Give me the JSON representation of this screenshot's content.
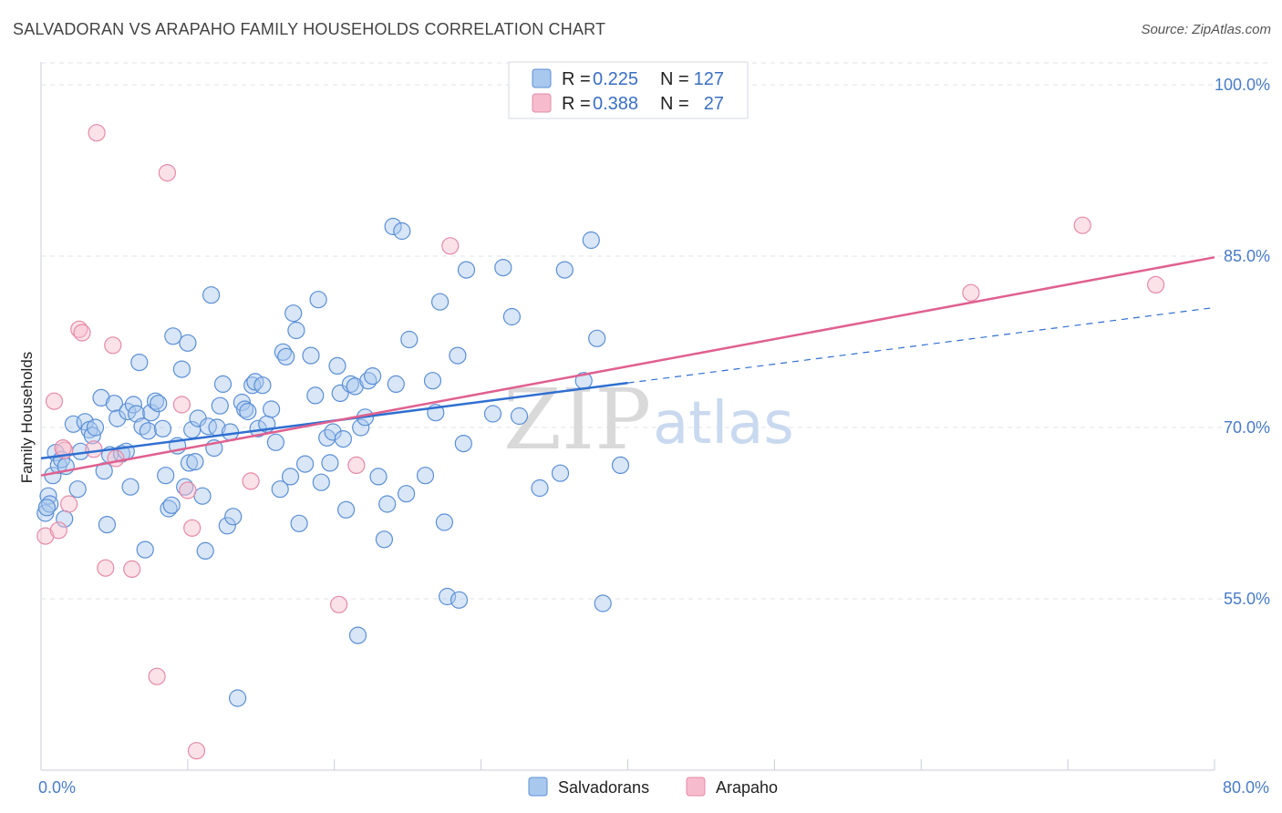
{
  "title": "SALVADORAN VS ARAPAHO FAMILY HOUSEHOLDS CORRELATION CHART",
  "source": "Source: ZipAtlas.com",
  "watermark": {
    "zip": "ZIP",
    "atlas": "atlas"
  },
  "legend": {
    "rows": [
      {
        "r_label": "R =",
        "r_value": "0.225",
        "n_label": "N =",
        "n_value": "127"
      },
      {
        "r_label": "R =",
        "r_value": "0.388",
        "n_label": "N =",
        "n_value": "27"
      }
    ]
  },
  "bottom_legend": [
    "Salvadorans",
    "Arapaho"
  ],
  "colors": {
    "blue_fill": "#a9c8ee",
    "blue_stroke": "#5b8fd6",
    "blue_line": "#2f6fd0",
    "pink_fill": "#f6bccd",
    "pink_stroke": "#e58aa8",
    "pink_line": "#e0608f",
    "grid": "#dde3ea",
    "tick_text": "#4a7cc7"
  },
  "chart_data": {
    "type": "scatter",
    "title": "SALVADORAN VS ARAPAHO FAMILY HOUSEHOLDS CORRELATION CHART",
    "xlabel": "",
    "ylabel": "Family Households",
    "xlim": [
      0,
      80
    ],
    "ylim": [
      40,
      102
    ],
    "x_tick_labels": [
      "0.0%",
      "80.0%"
    ],
    "y_ticks": [
      55,
      70,
      85,
      100
    ],
    "y_tick_labels": [
      "55.0%",
      "70.0%",
      "85.0%",
      "100.0%"
    ],
    "series": [
      {
        "name": "Salvadorans",
        "r": 0.225,
        "n": 127,
        "trend": {
          "x0": 0,
          "y0": 67.3,
          "x1": 40,
          "y1": 73.9,
          "dash_x1": 80,
          "dash_y1": 80.5
        },
        "points": [
          [
            0.3,
            62.5
          ],
          [
            0.5,
            64.0
          ],
          [
            0.6,
            63.3
          ],
          [
            0.8,
            65.8
          ],
          [
            1.0,
            67.8
          ],
          [
            1.2,
            66.7
          ],
          [
            1.4,
            67.2
          ],
          [
            1.6,
            62.0
          ],
          [
            1.7,
            66.6
          ],
          [
            2.2,
            70.3
          ],
          [
            2.5,
            64.6
          ],
          [
            2.7,
            67.9
          ],
          [
            3.0,
            70.5
          ],
          [
            3.3,
            69.8
          ],
          [
            3.5,
            69.3
          ],
          [
            3.7,
            70.0
          ],
          [
            4.1,
            72.6
          ],
          [
            4.3,
            66.2
          ],
          [
            4.5,
            61.5
          ],
          [
            4.7,
            67.6
          ],
          [
            5.0,
            72.1
          ],
          [
            5.2,
            70.8
          ],
          [
            5.5,
            67.7
          ],
          [
            5.8,
            67.9
          ],
          [
            5.9,
            71.4
          ],
          [
            6.1,
            64.8
          ],
          [
            6.3,
            72.0
          ],
          [
            6.5,
            71.2
          ],
          [
            6.7,
            75.7
          ],
          [
            6.9,
            70.1
          ],
          [
            7.1,
            59.3
          ],
          [
            7.3,
            69.7
          ],
          [
            7.5,
            71.3
          ],
          [
            7.8,
            72.3
          ],
          [
            8.0,
            72.1
          ],
          [
            8.3,
            69.9
          ],
          [
            8.5,
            65.8
          ],
          [
            8.7,
            62.9
          ],
          [
            8.9,
            63.2
          ],
          [
            9.0,
            78.0
          ],
          [
            9.3,
            68.4
          ],
          [
            9.6,
            75.1
          ],
          [
            9.8,
            64.8
          ],
          [
            10.0,
            77.4
          ],
          [
            10.1,
            66.9
          ],
          [
            10.3,
            69.8
          ],
          [
            10.5,
            67.0
          ],
          [
            10.7,
            70.8
          ],
          [
            11.0,
            64.0
          ],
          [
            11.2,
            59.2
          ],
          [
            11.4,
            70.1
          ],
          [
            11.6,
            81.6
          ],
          [
            11.8,
            68.2
          ],
          [
            12.0,
            70.0
          ],
          [
            12.2,
            71.9
          ],
          [
            12.4,
            73.8
          ],
          [
            12.7,
            61.4
          ],
          [
            12.9,
            69.6
          ],
          [
            13.1,
            62.2
          ],
          [
            13.4,
            46.3
          ],
          [
            13.7,
            72.2
          ],
          [
            13.9,
            71.6
          ],
          [
            14.1,
            71.4
          ],
          [
            14.4,
            73.7
          ],
          [
            14.6,
            74.0
          ],
          [
            14.8,
            69.9
          ],
          [
            15.1,
            73.7
          ],
          [
            15.4,
            70.3
          ],
          [
            15.7,
            71.6
          ],
          [
            16.0,
            68.7
          ],
          [
            16.3,
            64.6
          ],
          [
            16.5,
            76.6
          ],
          [
            16.7,
            76.2
          ],
          [
            17.0,
            65.7
          ],
          [
            17.2,
            80.0
          ],
          [
            17.4,
            78.5
          ],
          [
            17.6,
            61.6
          ],
          [
            18.0,
            66.8
          ],
          [
            18.4,
            76.3
          ],
          [
            18.7,
            72.8
          ],
          [
            18.9,
            81.2
          ],
          [
            19.1,
            65.2
          ],
          [
            19.5,
            69.1
          ],
          [
            19.7,
            66.9
          ],
          [
            19.9,
            69.6
          ],
          [
            20.2,
            75.4
          ],
          [
            20.4,
            73.0
          ],
          [
            20.6,
            69.0
          ],
          [
            20.8,
            62.8
          ],
          [
            21.1,
            73.8
          ],
          [
            21.4,
            73.6
          ],
          [
            21.6,
            51.8
          ],
          [
            21.8,
            70.0
          ],
          [
            22.1,
            70.9
          ],
          [
            22.3,
            74.1
          ],
          [
            22.6,
            74.5
          ],
          [
            23.0,
            65.7
          ],
          [
            23.4,
            60.2
          ],
          [
            23.6,
            63.3
          ],
          [
            24.0,
            87.6
          ],
          [
            24.2,
            73.8
          ],
          [
            24.6,
            87.2
          ],
          [
            24.9,
            64.2
          ],
          [
            25.1,
            77.7
          ],
          [
            26.2,
            65.8
          ],
          [
            26.7,
            74.1
          ],
          [
            26.9,
            71.3
          ],
          [
            27.2,
            81.0
          ],
          [
            27.5,
            61.7
          ],
          [
            27.7,
            55.2
          ],
          [
            28.4,
            76.3
          ],
          [
            28.5,
            54.9
          ],
          [
            28.8,
            68.6
          ],
          [
            29.0,
            83.8
          ],
          [
            30.8,
            71.2
          ],
          [
            31.5,
            84.0
          ],
          [
            32.1,
            79.7
          ],
          [
            32.6,
            71.0
          ],
          [
            34.0,
            64.7
          ],
          [
            35.4,
            66.0
          ],
          [
            35.7,
            83.8
          ],
          [
            37.0,
            74.1
          ],
          [
            37.5,
            86.4
          ],
          [
            37.9,
            77.8
          ],
          [
            38.3,
            54.6
          ],
          [
            39.5,
            66.7
          ],
          [
            0.4,
            63.0
          ]
        ]
      },
      {
        "name": "Arapaho",
        "r": 0.388,
        "n": 27,
        "trend": {
          "x0": 0,
          "y0": 65.8,
          "x1": 80,
          "y1": 84.9
        },
        "points": [
          [
            0.3,
            60.5
          ],
          [
            0.9,
            72.3
          ],
          [
            1.2,
            61.0
          ],
          [
            1.6,
            68.0
          ],
          [
            1.9,
            63.3
          ],
          [
            2.6,
            78.6
          ],
          [
            2.8,
            78.3
          ],
          [
            3.6,
            68.1
          ],
          [
            3.8,
            95.8
          ],
          [
            4.4,
            57.7
          ],
          [
            4.9,
            77.2
          ],
          [
            5.1,
            67.3
          ],
          [
            6.2,
            57.6
          ],
          [
            7.9,
            48.2
          ],
          [
            8.6,
            92.3
          ],
          [
            9.6,
            72.0
          ],
          [
            10.0,
            64.5
          ],
          [
            10.3,
            61.2
          ],
          [
            10.6,
            41.7
          ],
          [
            14.3,
            65.3
          ],
          [
            20.3,
            54.5
          ],
          [
            21.5,
            66.7
          ],
          [
            27.9,
            85.9
          ],
          [
            63.4,
            81.8
          ],
          [
            71.0,
            87.7
          ],
          [
            76.0,
            82.5
          ],
          [
            1.5,
            68.2
          ]
        ]
      }
    ]
  }
}
